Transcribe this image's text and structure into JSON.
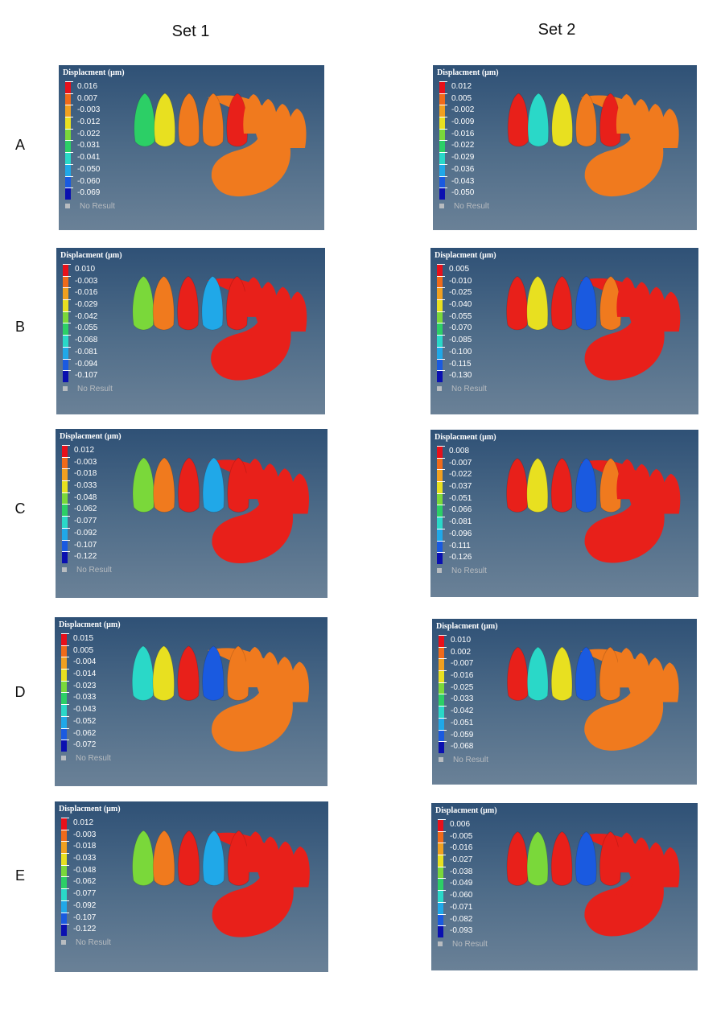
{
  "headers": {
    "set1": "Set 1",
    "set2": "Set 2"
  },
  "rows": [
    {
      "label": "A",
      "set1": {
        "title": "Displacment (µm)",
        "values": [
          "0.016",
          "0.007",
          "-0.003",
          "-0.012",
          "-0.022",
          "-0.031",
          "-0.041",
          "-0.050",
          "-0.060",
          "-0.069"
        ],
        "no_result": "No Result"
      },
      "set2": {
        "title": "Displacment (µm)",
        "values": [
          "0.012",
          "0.005",
          "-0.002",
          "-0.009",
          "-0.016",
          "-0.022",
          "-0.029",
          "-0.036",
          "-0.043",
          "-0.050"
        ],
        "no_result": "No Result"
      }
    },
    {
      "label": "B",
      "set1": {
        "title": "Displacment (µm)",
        "values": [
          "0.010",
          "-0.003",
          "-0.016",
          "-0.029",
          "-0.042",
          "-0.055",
          "-0.068",
          "-0.081",
          "-0.094",
          "-0.107"
        ],
        "no_result": "No Result"
      },
      "set2": {
        "title": "Displacment (µm)",
        "values": [
          "0.005",
          "-0.010",
          "-0.025",
          "-0.040",
          "-0.055",
          "-0.070",
          "-0.085",
          "-0.100",
          "-0.115",
          "-0.130"
        ],
        "no_result": "No Result"
      }
    },
    {
      "label": "C",
      "set1": {
        "title": "Displacment (µm)",
        "values": [
          "0.012",
          "-0.003",
          "-0.018",
          "-0.033",
          "-0.048",
          "-0.062",
          "-0.077",
          "-0.092",
          "-0.107",
          "-0.122"
        ],
        "no_result": "No Result"
      },
      "set2": {
        "title": "Displacment (µm)",
        "values": [
          "0.008",
          "-0.007",
          "-0.022",
          "-0.037",
          "-0.051",
          "-0.066",
          "-0.081",
          "-0.096",
          "-0.111",
          "-0.126"
        ],
        "no_result": "No Result"
      }
    },
    {
      "label": "D",
      "set1": {
        "title": "Displacment (µm)",
        "values": [
          "0.015",
          "0.005",
          "-0.004",
          "-0.014",
          "-0.023",
          "-0.033",
          "-0.043",
          "-0.052",
          "-0.062",
          "-0.072"
        ],
        "no_result": "No Result"
      },
      "set2": {
        "title": "Displacment (µm)",
        "values": [
          "0.010",
          "0.002",
          "-0.007",
          "-0.016",
          "-0.025",
          "-0.033",
          "-0.042",
          "-0.051",
          "-0.059",
          "-0.068"
        ],
        "no_result": "No Result"
      }
    },
    {
      "label": "E",
      "set1": {
        "title": "Displacment (µm)",
        "values": [
          "0.012",
          "-0.003",
          "-0.018",
          "-0.033",
          "-0.048",
          "-0.062",
          "-0.077",
          "-0.092",
          "-0.107",
          "-0.122"
        ],
        "no_result": "No Result"
      },
      "set2": {
        "title": "Displacment (µm)",
        "values": [
          "0.006",
          "-0.005",
          "-0.016",
          "-0.027",
          "-0.038",
          "-0.049",
          "-0.060",
          "-0.071",
          "-0.082",
          "-0.093"
        ],
        "no_result": "No Result"
      }
    }
  ],
  "legend_colors": [
    "#e8101a",
    "#f06a1a",
    "#f0a020",
    "#e8e020",
    "#7ad83a",
    "#2ccf66",
    "#2ad8c8",
    "#20a8e8",
    "#1a5ae0",
    "#0a10b0"
  ],
  "colors": {
    "background_top": "#2f5176",
    "background_bottom": "#6a8197",
    "orange_tooth": "#f07a1e",
    "red_tooth": "#e8201a"
  }
}
